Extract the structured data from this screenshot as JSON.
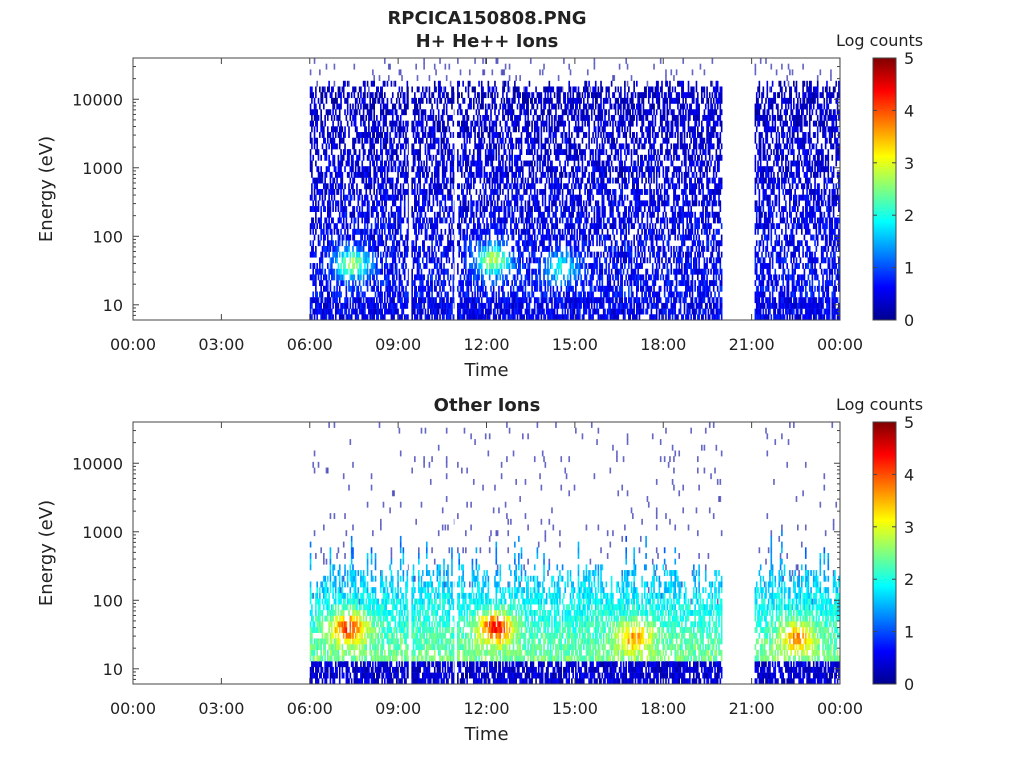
{
  "figure": {
    "title": "RPCICA150808.PNG"
  },
  "chart_data": [
    {
      "type": "heatmap",
      "title": "H+ He++ Ions",
      "xlabel": "Time",
      "ylabel": "Energy (eV)",
      "x_ticks": [
        "00:00",
        "03:00",
        "06:00",
        "09:00",
        "12:00",
        "15:00",
        "18:00",
        "21:00",
        "00:00"
      ],
      "x_range_hours": [
        0,
        24
      ],
      "y_scale": "log",
      "y_ticks": [
        10,
        100,
        1000,
        10000
      ],
      "y_tick_labels": [
        "10",
        "100",
        "1000",
        "10000"
      ],
      "y_range": [
        6,
        40000
      ],
      "colorbar": {
        "label": "Log counts",
        "range": [
          0,
          5
        ],
        "ticks": [
          "0",
          "1",
          "2",
          "3",
          "4",
          "5"
        ],
        "colormap": "jet"
      },
      "data_coverage_hours": [
        [
          6.0,
          9.35
        ],
        [
          9.45,
          10.9
        ],
        [
          11.0,
          20.0
        ],
        [
          21.1,
          24.0
        ]
      ],
      "hotspots": [
        {
          "time_hours": 7.4,
          "energy_eV": 40,
          "log_counts": 2.6
        },
        {
          "time_hours": 12.2,
          "energy_eV": 45,
          "log_counts": 2.8
        },
        {
          "time_hours": 14.5,
          "energy_eV": 35,
          "log_counts": 2.0
        }
      ],
      "background_level_log_counts": 0.6,
      "grid": false
    },
    {
      "type": "heatmap",
      "title": "Other Ions",
      "xlabel": "Time",
      "ylabel": "Energy (eV)",
      "x_ticks": [
        "00:00",
        "03:00",
        "06:00",
        "09:00",
        "12:00",
        "15:00",
        "18:00",
        "21:00",
        "00:00"
      ],
      "x_range_hours": [
        0,
        24
      ],
      "y_scale": "log",
      "y_ticks": [
        10,
        100,
        1000,
        10000
      ],
      "y_tick_labels": [
        "10",
        "100",
        "1000",
        "10000"
      ],
      "y_range": [
        6,
        40000
      ],
      "colorbar": {
        "label": "Log counts",
        "range": [
          0,
          5
        ],
        "ticks": [
          "0",
          "1",
          "2",
          "3",
          "4",
          "5"
        ],
        "colormap": "jet"
      },
      "data_coverage_hours": [
        [
          6.0,
          9.35
        ],
        [
          9.45,
          10.9
        ],
        [
          11.0,
          20.0
        ],
        [
          21.1,
          24.0
        ]
      ],
      "hotspots": [
        {
          "time_hours": 7.3,
          "energy_eV": 40,
          "log_counts": 3.6
        },
        {
          "time_hours": 12.3,
          "energy_eV": 40,
          "log_counts": 3.8
        },
        {
          "time_hours": 17.0,
          "energy_eV": 30,
          "log_counts": 3.0
        },
        {
          "time_hours": 22.5,
          "energy_eV": 30,
          "log_counts": 3.0
        }
      ],
      "background_level_log_counts": 1.6,
      "grid": false
    }
  ]
}
